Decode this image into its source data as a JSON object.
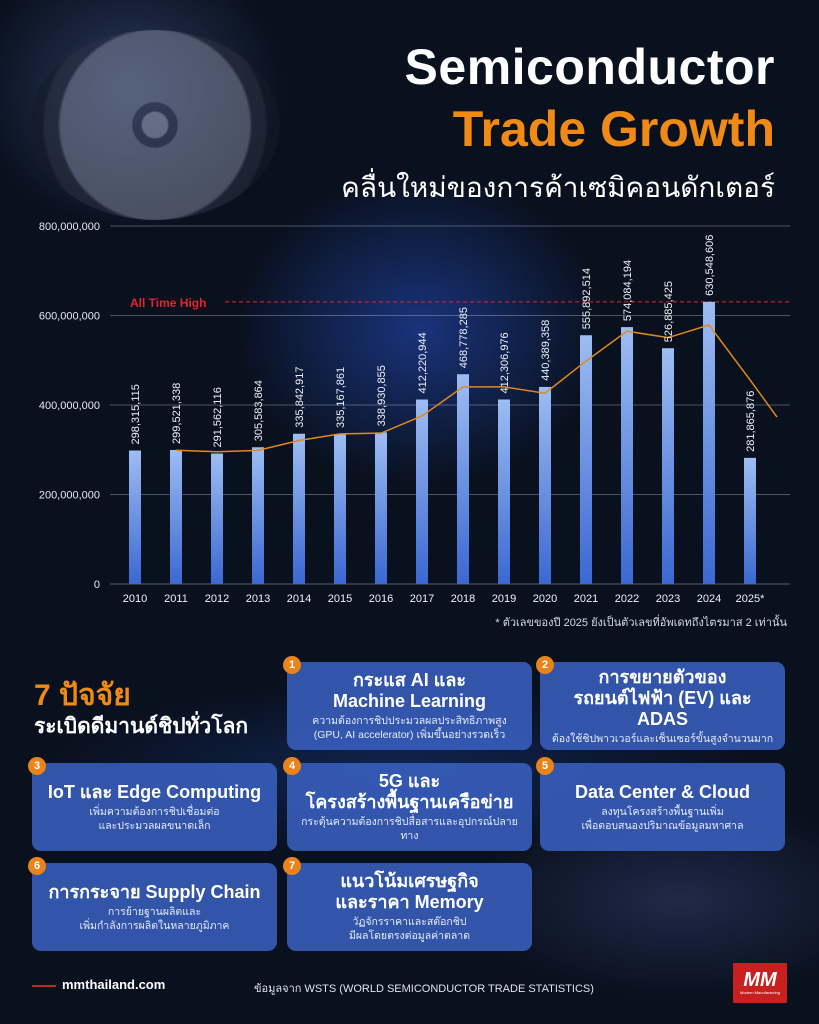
{
  "header": {
    "title_line1": "Semiconductor",
    "title_line2": "Trade Growth",
    "subtitle": "คลื่นใหม่ของการค้าเซมิคอนดักเตอร์"
  },
  "colors": {
    "title_accent": "#f08a16",
    "bar": "#6f9be6",
    "trend_line": "#e0891e",
    "ath_line": "#e0262b",
    "card": "#3c64c8",
    "badge": "#e9831a"
  },
  "chart_data": {
    "type": "bar",
    "categories": [
      "2010",
      "2011",
      "2012",
      "2013",
      "2014",
      "2015",
      "2016",
      "2017",
      "2018",
      "2019",
      "2020",
      "2021",
      "2022",
      "2023",
      "2024",
      "2025*"
    ],
    "values": [
      298315115,
      299521338,
      291562116,
      305583864,
      335842917,
      335167861,
      338930855,
      412220944,
      468778285,
      412306976,
      440389358,
      555892514,
      574084194,
      526885425,
      630548606,
      281865876
    ],
    "value_labels": [
      "298,315,115",
      "299,521,338",
      "291,562,116",
      "305,583,864",
      "335,842,917",
      "335,167,861",
      "338,930,855",
      "412,220,944",
      "468,778,285",
      "412,306,976",
      "440,389,358",
      "555,892,514",
      "574,084,194",
      "526,885,425",
      "630,548,606",
      "281,865,876"
    ],
    "trend": {
      "type": "2-period moving average",
      "values": [
        null,
        298918227,
        295541727,
        298572990,
        320713391,
        335505389,
        337049358,
        375575900,
        440499615,
        440542631,
        426348167,
        498140936,
        564988354,
        550484810,
        578717016,
        456207241
      ]
    },
    "yticks": [
      0,
      200000000,
      400000000,
      600000000,
      800000000
    ],
    "ytick_labels": [
      "0",
      "200,000,000",
      "400,000,000",
      "600,000,000",
      "800,000,000"
    ],
    "ylim": [
      0,
      800000000
    ],
    "annotation": {
      "label": "All Time High",
      "value": 630548606
    },
    "grid": true,
    "footnote": "* ตัวเลขของปี 2025 ยังเป็นตัวเลขที่อัพเดทถึงไตรมาส 2 เท่านั้น"
  },
  "factors": {
    "heading": "7 ปัจจัย",
    "subheading": "ระเบิดดีมานด์ชิปทั่วโลก",
    "items": [
      {
        "num": "1",
        "title": "กระแส AI และ\nMachine Learning",
        "desc": "ความต้องการชิปประมวลผลประสิทธิภาพสูง\n(GPU, AI accelerator) เพิ่มขึ้นอย่างรวดเร็ว"
      },
      {
        "num": "2",
        "title": "การขยายตัวของ\nรถยนต์ไฟฟ้า (EV) และ ADAS",
        "desc": "ต้องใช้ชิปพาวเวอร์และเซ็นเซอร์ขั้นสูงจำนวนมาก"
      },
      {
        "num": "3",
        "title": "IoT และ Edge Computing",
        "desc": "เพิ่มความต้องการชิปเชื่อมต่อ\nและประมวลผลขนาดเล็ก"
      },
      {
        "num": "4",
        "title": "5G และ\nโครงสร้างพื้นฐานเครือข่าย",
        "desc": "กระตุ้นความต้องการชิปสื่อสารและอุปกรณ์ปลายทาง"
      },
      {
        "num": "5",
        "title": "Data Center & Cloud",
        "desc": "ลงทุนโครงสร้างพื้นฐานเพิ่ม\nเพื่อตอบสนองปริมาณข้อมูลมหาศาล"
      },
      {
        "num": "6",
        "title": "การกระจาย Supply Chain",
        "desc": "การย้ายฐานผลิตและ\nเพิ่มกำลังการผลิตในหลายภูมิภาค"
      },
      {
        "num": "7",
        "title": "แนวโน้มเศรษฐกิจ\nและราคา Memory",
        "desc": "วัฏจักรราคาและสต๊อกชิป\nมีผลโดยตรงต่อมูลค่าตลาด"
      }
    ]
  },
  "footer": {
    "site": "mmthailand.com",
    "source": "ข้อมูลจาก WSTS (WORLD SEMICONDUCTOR TRADE STATISTICS)",
    "logo_text": "MM",
    "logo_sub": "Modern Manufacturing"
  }
}
